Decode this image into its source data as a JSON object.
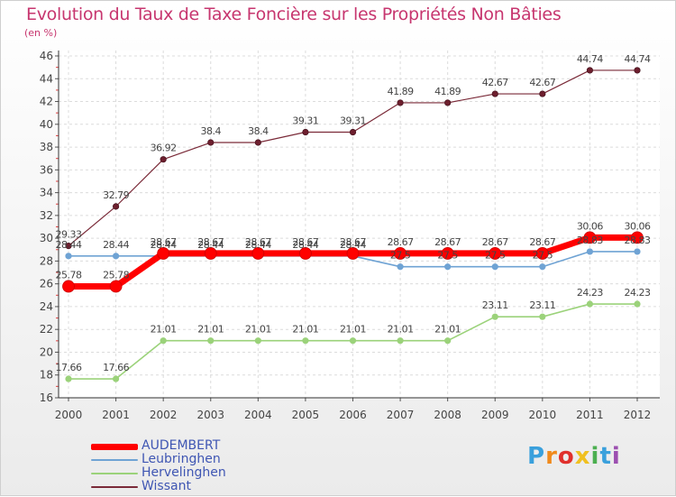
{
  "title": "Evolution du Taux de Taxe Foncière sur les Propriétés Non Bâties",
  "unit_label": "(en %)",
  "logo": {
    "text": "Proxiti",
    "colors": [
      "#3aa0dc",
      "#f08a1c",
      "#e0302c",
      "#f0c020",
      "#4caf50",
      "#3aa0dc",
      "#9c4fb0"
    ]
  },
  "chart_data": {
    "type": "line",
    "title": "Evolution du Taux de Taxe Foncière sur les Propriétés Non Bâties",
    "ylabel": "(en %)",
    "xlabel": "",
    "ylim": [
      16,
      46
    ],
    "yticks": [
      16,
      18,
      20,
      22,
      24,
      26,
      28,
      30,
      32,
      34,
      36,
      38,
      40,
      42,
      44,
      46
    ],
    "x": [
      "2000",
      "2001",
      "2002",
      "2003",
      "2004",
      "2005",
      "2006",
      "2007",
      "2008",
      "2009",
      "2010",
      "2011",
      "2012"
    ],
    "grid": true,
    "legend_position": "bottom-left",
    "series": [
      {
        "name": "AUDEMBERT",
        "color": "#ff0000",
        "width": 7,
        "values": [
          25.78,
          25.78,
          28.67,
          28.67,
          28.67,
          28.67,
          28.67,
          28.67,
          28.67,
          28.67,
          28.67,
          30.06,
          30.06
        ],
        "labels": [
          "25.78",
          "25.78",
          "28.67",
          "28.67",
          "28.67",
          "28.67",
          "28.67",
          "28.67",
          "28.67",
          "28.67",
          "28.67",
          "30.06",
          "30.06"
        ]
      },
      {
        "name": "Leubringhen",
        "color": "#6fa3d4",
        "width": 1.6,
        "values": [
          28.44,
          28.44,
          28.44,
          28.44,
          28.44,
          28.44,
          28.44,
          27.5,
          27.5,
          27.5,
          27.5,
          28.83,
          28.83
        ],
        "labels": [
          "28.44",
          "28.44",
          "28.44",
          "28.44",
          "28.44",
          "28.44",
          "28.44",
          "27.5",
          "27.5",
          "27.5",
          "27.5",
          "28.83",
          "28.83"
        ]
      },
      {
        "name": "Hervelinghen",
        "color": "#9bd27a",
        "width": 1.6,
        "values": [
          17.66,
          17.66,
          21.01,
          21.01,
          21.01,
          21.01,
          21.01,
          21.01,
          21.01,
          23.11,
          23.11,
          24.23,
          24.23
        ],
        "labels": [
          "17.66",
          "17.66",
          "21.01",
          "21.01",
          "21.01",
          "21.01",
          "21.01",
          "21.01",
          "21.01",
          "23.11",
          "23.11",
          "24.23",
          "24.23"
        ]
      },
      {
        "name": "Wissant",
        "color": "#7a2a38",
        "width": 1.2,
        "values": [
          29.33,
          32.79,
          36.92,
          38.4,
          38.4,
          39.31,
          39.31,
          41.89,
          41.89,
          42.67,
          42.67,
          44.74,
          44.74
        ],
        "labels": [
          "29.33",
          "32.79",
          "36.92",
          "38.4",
          "38.4",
          "39.31",
          "39.31",
          "41.89",
          "41.89",
          "42.67",
          "42.67",
          "44.74",
          "44.74"
        ]
      }
    ]
  }
}
